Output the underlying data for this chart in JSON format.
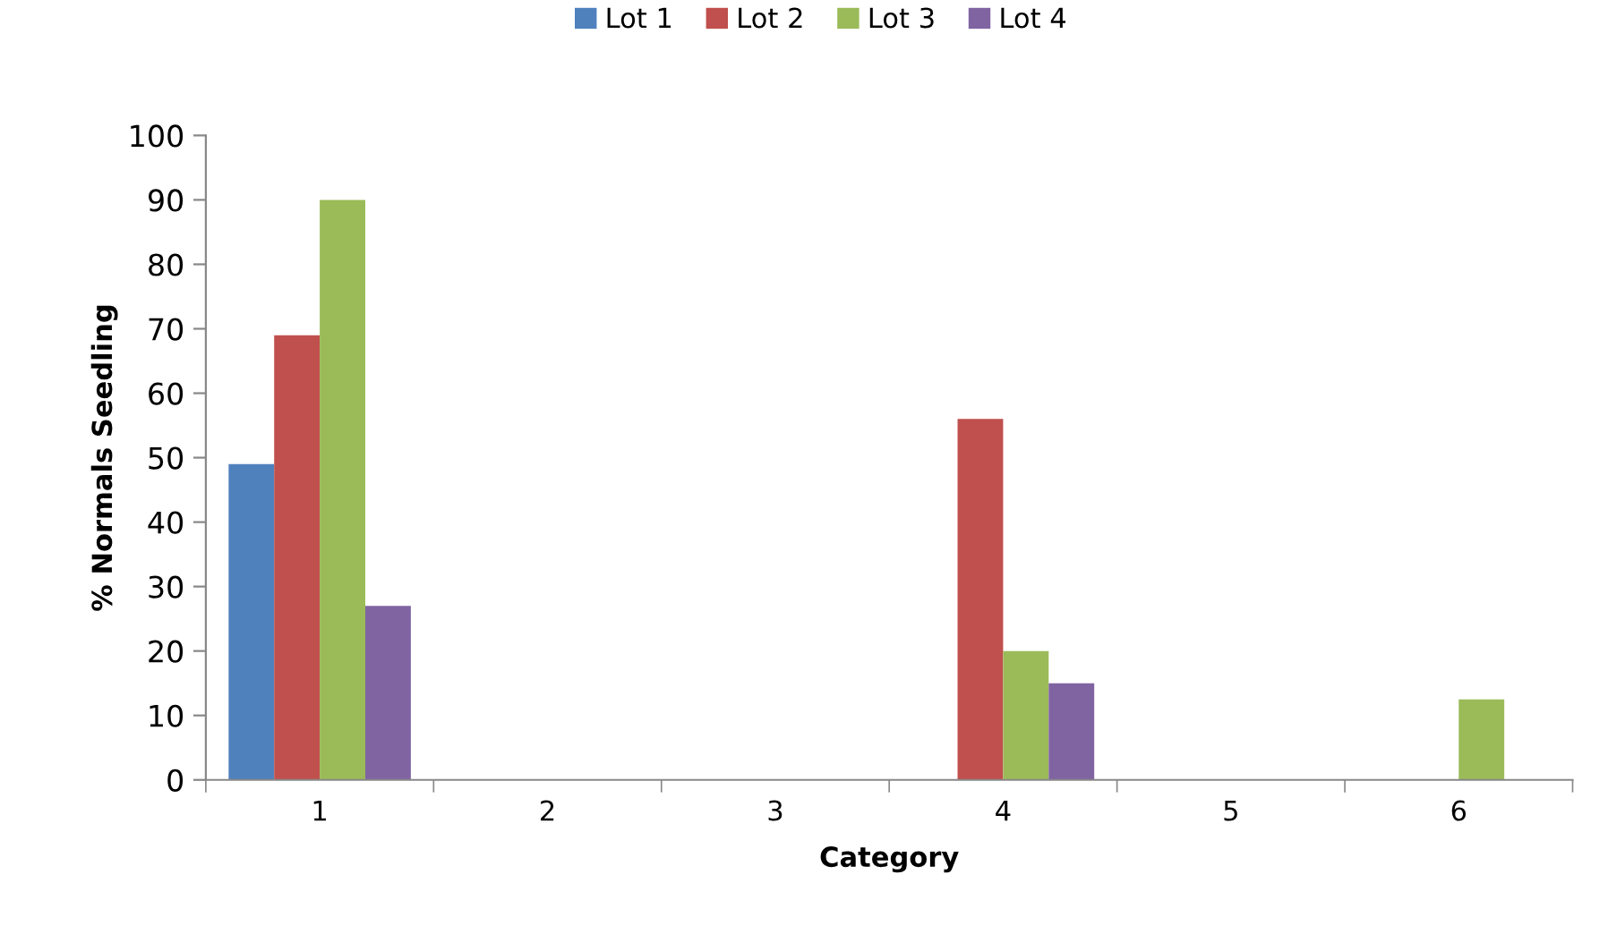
{
  "chart_data": {
    "type": "bar",
    "xlabel": "Category",
    "ylabel": "% Normals Seedling",
    "categories": [
      "1",
      "2",
      "3",
      "4",
      "5",
      "6"
    ],
    "series": [
      {
        "name": "Lot 1",
        "color": "#4f81bd",
        "values": [
          49,
          null,
          null,
          null,
          null,
          null
        ]
      },
      {
        "name": "Lot 2",
        "color": "#c0504d",
        "values": [
          69,
          null,
          null,
          56,
          null,
          null
        ]
      },
      {
        "name": "Lot 3",
        "color": "#9bbb59",
        "values": [
          90,
          null,
          null,
          20,
          null,
          12.5
        ]
      },
      {
        "name": "Lot 4",
        "color": "#8064a2",
        "values": [
          27,
          null,
          null,
          15,
          null,
          null
        ]
      }
    ],
    "ylim": [
      0,
      100
    ],
    "yticks": [
      0,
      10,
      20,
      30,
      40,
      50,
      60,
      70,
      80,
      90,
      100
    ],
    "grid": false,
    "legend": "top"
  }
}
